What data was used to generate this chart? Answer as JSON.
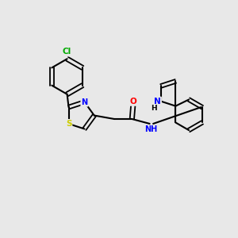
{
  "background_color": "#e8e8e8",
  "bond_color": "#000000",
  "atom_colors": {
    "Cl": "#00aa00",
    "S": "#cccc00",
    "N": "#0000ff",
    "O": "#ff0000",
    "H": "#000000",
    "C": "#000000"
  },
  "title": "",
  "figsize": [
    3.0,
    3.0
  ],
  "dpi": 100
}
